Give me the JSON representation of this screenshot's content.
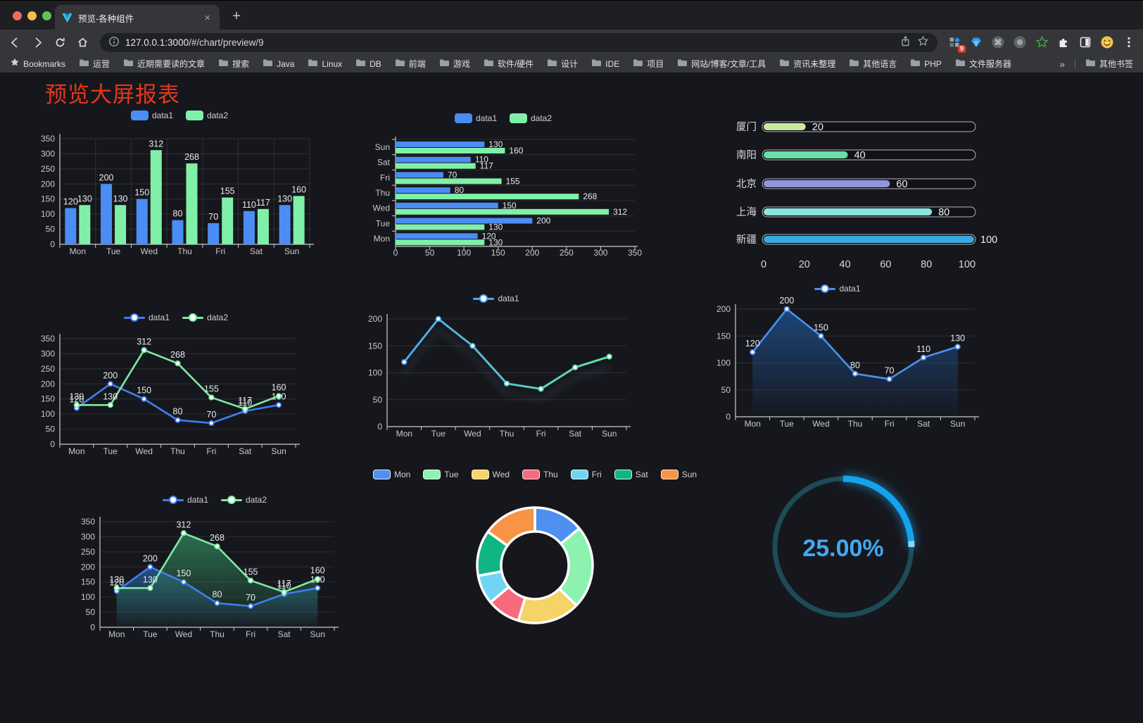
{
  "browser": {
    "tab": {
      "title": "预览-各种组件",
      "close_glyph": "×",
      "new_tab_glyph": "+"
    },
    "url": {
      "host": "127.0.0.1:3000",
      "path": "/#/chart/preview/9"
    },
    "extension_badge": "9",
    "bookmarks": {
      "label": "Bookmarks",
      "folders": [
        "运营",
        "近期需要读的文章",
        "搜索",
        "Java",
        "Linux",
        "DB",
        "前端",
        "游戏",
        "软件/硬件",
        "设计",
        "IDE",
        "项目",
        "网站/博客/文章/工具",
        "资讯未整理",
        "其他语言",
        "PHP",
        "文件服务器"
      ],
      "overflow_glyph": "»",
      "other_label": "其他书签"
    }
  },
  "page": {
    "title": "预览大屏报表",
    "title_color": "#e5381b",
    "background": "#16171c"
  },
  "chart_data": [
    {
      "id": "bar-vertical",
      "type": "bar",
      "legend_position": "top",
      "grid": true,
      "categories": [
        "Mon",
        "Tue",
        "Wed",
        "Thu",
        "Fri",
        "Sat",
        "Sun"
      ],
      "series": [
        {
          "name": "data1",
          "color": "#4a8df5",
          "values": [
            120,
            200,
            150,
            80,
            70,
            110,
            130
          ]
        },
        {
          "name": "data2",
          "color": "#80f0a8",
          "values": [
            130,
            130,
            312,
            268,
            155,
            117,
            160
          ]
        }
      ],
      "ylim": [
        0,
        350
      ],
      "ytick": 50,
      "value_labels": true
    },
    {
      "id": "bar-horizontal",
      "type": "bar",
      "orientation": "horizontal",
      "legend_position": "top",
      "categories": [
        "Mon",
        "Tue",
        "Wed",
        "Thu",
        "Fri",
        "Sat",
        "Sun"
      ],
      "display_order_top_to_bottom": [
        "Sun",
        "Sat",
        "Fri",
        "Thu",
        "Wed",
        "Tue",
        "Mon"
      ],
      "series": [
        {
          "name": "data1",
          "color": "#4a8df5",
          "values": [
            120,
            200,
            150,
            80,
            70,
            110,
            130
          ]
        },
        {
          "name": "data2",
          "color": "#80f0a8",
          "values": [
            130,
            130,
            312,
            268,
            155,
            117,
            160
          ]
        }
      ],
      "xlim": [
        0,
        350
      ],
      "xtick": 50,
      "value_labels": true
    },
    {
      "id": "progress-bars",
      "type": "bar",
      "subtype": "progress",
      "xlim": [
        0,
        100
      ],
      "xticks": [
        0,
        20,
        40,
        60,
        80,
        100
      ],
      "rows": [
        {
          "label": "厦门",
          "value": 20,
          "color": "#c9e9a1"
        },
        {
          "label": "南阳",
          "value": 40,
          "color": "#66e0a7"
        },
        {
          "label": "北京",
          "value": 60,
          "color": "#9095de"
        },
        {
          "label": "上海",
          "value": 80,
          "color": "#8be5df"
        },
        {
          "label": "新疆",
          "value": 100,
          "color": "#38aae1"
        }
      ]
    },
    {
      "id": "line-two-series",
      "type": "line",
      "legend_position": "top",
      "categories": [
        "Mon",
        "Tue",
        "Wed",
        "Thu",
        "Fri",
        "Sat",
        "Sun"
      ],
      "series": [
        {
          "name": "data1",
          "color": "#3f7ef0",
          "values": [
            120,
            200,
            150,
            80,
            70,
            110,
            130
          ]
        },
        {
          "name": "data2",
          "color": "#7ceba4",
          "values": [
            130,
            130,
            312,
            268,
            155,
            117,
            160
          ]
        }
      ],
      "ylim": [
        0,
        350
      ],
      "ytick": 50,
      "value_labels": true
    },
    {
      "id": "line-gradient-shadow",
      "type": "line",
      "legend_position": "top",
      "categories": [
        "Mon",
        "Tue",
        "Wed",
        "Thu",
        "Fri",
        "Sat",
        "Sun"
      ],
      "series": [
        {
          "name": "data1",
          "color_start": "#4fa6f5",
          "color_end": "#5fe6a0",
          "values": [
            120,
            200,
            150,
            80,
            70,
            110,
            130
          ]
        }
      ],
      "ylim": [
        0,
        200
      ],
      "ytick": 50,
      "value_labels": false,
      "shadow": true
    },
    {
      "id": "area-single",
      "type": "area",
      "legend_position": "top",
      "categories": [
        "Mon",
        "Tue",
        "Wed",
        "Thu",
        "Fri",
        "Sat",
        "Sun"
      ],
      "series": [
        {
          "name": "data1",
          "color": "#4a90f2",
          "fill_from": "#1e4c86",
          "values": [
            120,
            200,
            150,
            80,
            70,
            110,
            130
          ]
        }
      ],
      "ylim": [
        0,
        200
      ],
      "ytick": 50,
      "value_labels": true
    },
    {
      "id": "line-area-two-series",
      "type": "area",
      "legend_position": "top",
      "categories": [
        "Mon",
        "Tue",
        "Wed",
        "Thu",
        "Fri",
        "Sat",
        "Sun"
      ],
      "series": [
        {
          "name": "data1",
          "color": "#3f7ef0",
          "fill_from": "#27598f",
          "values": [
            120,
            200,
            150,
            80,
            70,
            110,
            130
          ]
        },
        {
          "name": "data2",
          "color": "#7ceba4",
          "fill_from": "#2e7a55",
          "values": [
            130,
            130,
            312,
            268,
            155,
            117,
            160
          ]
        }
      ],
      "ylim": [
        0,
        350
      ],
      "ytick": 50,
      "value_labels": true
    },
    {
      "id": "donut",
      "type": "pie",
      "legend_position": "top",
      "inner_radius_ratio": 0.59,
      "items": [
        {
          "name": "Mon",
          "value": 120,
          "color": "#4e8ff0"
        },
        {
          "name": "Tue",
          "value": 200,
          "color": "#8bf2b0"
        },
        {
          "name": "Wed",
          "value": 150,
          "color": "#f6d366"
        },
        {
          "name": "Thu",
          "value": 80,
          "color": "#f9697e"
        },
        {
          "name": "Fri",
          "value": 70,
          "color": "#70d4f5"
        },
        {
          "name": "Sat",
          "value": 110,
          "color": "#10b583"
        },
        {
          "name": "Sun",
          "value": 130,
          "color": "#f79445"
        }
      ]
    },
    {
      "id": "gauge-ring",
      "type": "gauge",
      "value": 25,
      "label": "25.00%",
      "arc_color": "#14a3ef",
      "track_color": "#1d4b57",
      "text_color": "#41a9f2"
    }
  ]
}
